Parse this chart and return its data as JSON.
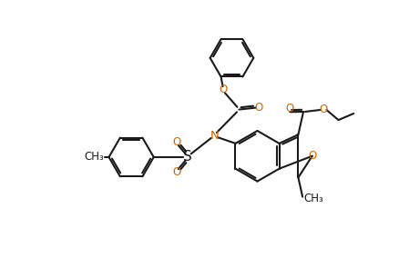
{
  "background_color": "#ffffff",
  "line_color": "#1a1a1a",
  "o_color": "#cc6600",
  "n_color": "#cc6600",
  "s_color": "#1a1a1a",
  "lw": 1.5,
  "dbo": 0.055,
  "figsize": [
    4.38,
    2.84
  ],
  "dpi": 100,
  "xlim": [
    0,
    11
  ],
  "ylim": [
    0,
    7.1
  ]
}
